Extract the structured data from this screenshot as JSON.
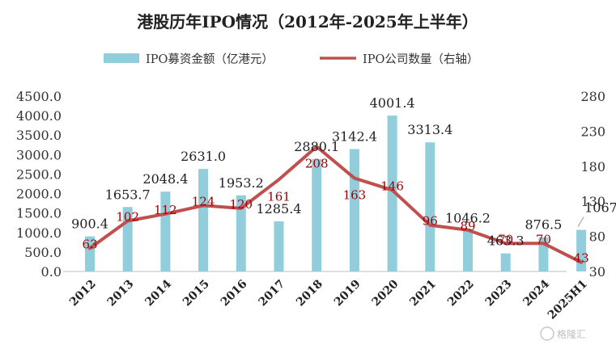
{
  "chart_data": {
    "type": "bar+line",
    "title": "港股历年IPO情况（2012年-2025年上半年）",
    "categories": [
      "2012",
      "2013",
      "2014",
      "2015",
      "2016",
      "2017",
      "2018",
      "2019",
      "2020",
      "2021",
      "2022",
      "2023",
      "2024",
      "2025H1"
    ],
    "series": [
      {
        "name": "IPO募资金额（亿港元）",
        "type": "bar",
        "axis": "left",
        "color": "#92CDDC",
        "values": [
          900.4,
          1653.7,
          2048.4,
          2631.0,
          1953.2,
          1285.4,
          2880.1,
          3142.4,
          4001.4,
          3313.4,
          1046.2,
          463.3,
          876.5,
          1067.1
        ],
        "labels": [
          "900.4",
          "1653.7",
          "2048.4",
          "2631.0",
          "1953.2",
          "1285.4",
          "2880.1",
          "3142.4",
          "4001.4",
          "3313.4",
          "1046.2",
          "463.3",
          "876.5",
          "1067.1"
        ]
      },
      {
        "name": "IPO公司数量（右轴）",
        "type": "line",
        "axis": "right",
        "color": "#C0504D",
        "values": [
          63,
          102,
          112,
          124,
          120,
          161,
          208,
          163,
          146,
          96,
          89,
          70,
          70,
          43
        ],
        "labels": [
          "63",
          "102",
          "112",
          "124",
          "120",
          "161",
          "208",
          "163",
          "146",
          "96",
          "89",
          "70",
          "70",
          "43"
        ]
      }
    ],
    "y_left": {
      "min": 0,
      "max": 4500,
      "ticks": [
        "0.0",
        "500.0",
        "1000.0",
        "1500.0",
        "2000.0",
        "2500.0",
        "3000.0",
        "3500.0",
        "4000.0",
        "4500.0"
      ]
    },
    "y_right": {
      "min": 30,
      "max": 280,
      "ticks": [
        "30",
        "80",
        "130",
        "180",
        "230",
        "280"
      ]
    },
    "legend_position": "top",
    "grid": false
  },
  "watermark": {
    "text": "格隆汇"
  }
}
